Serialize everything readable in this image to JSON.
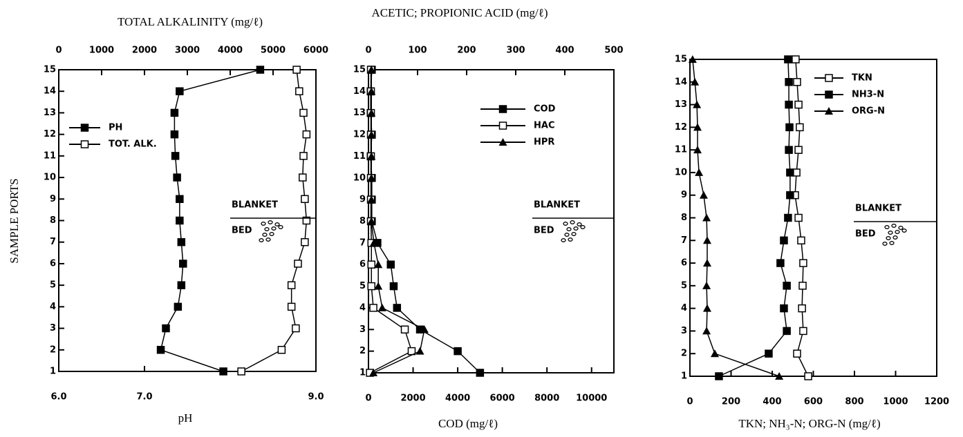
{
  "chart_data": [
    {
      "type": "line",
      "x2label": "TOTAL ALKALINITY (mg/ℓ)",
      "xlabel": "pH",
      "ylabel": "SAMPLE PORTS",
      "y": [
        15,
        14,
        13,
        12,
        11,
        10,
        9,
        8,
        7,
        6,
        5,
        4,
        3,
        2,
        1
      ],
      "series": [
        {
          "name": "PH",
          "color": "#000000",
          "marker": "square-filled",
          "values": [
            8.35,
            7.41,
            7.35,
            7.35,
            7.36,
            7.38,
            7.41,
            7.41,
            7.43,
            7.45,
            7.43,
            7.39,
            7.25,
            7.19,
            7.92
          ]
        },
        {
          "name": "TOT. ALK.",
          "color": "#000000",
          "marker": "square-open",
          "axis": "x2",
          "values": [
            5550,
            5610,
            5710,
            5780,
            5710,
            5690,
            5740,
            5780,
            5740,
            5580,
            5430,
            5430,
            5530,
            5200,
            4260
          ]
        }
      ],
      "xlim": [
        6,
        9
      ],
      "xticks": [
        {
          "value": 6,
          "label": "6.0"
        },
        {
          "value": 7,
          "label": "7.0"
        },
        {
          "value": 9,
          "label": "9.0"
        }
      ],
      "x2lim": [
        0,
        6000
      ],
      "x2ticks": [
        0,
        1000,
        2000,
        3000,
        4000,
        5000,
        6000
      ],
      "ylim": [
        1,
        15
      ],
      "yticks": [
        1,
        2,
        3,
        4,
        5,
        6,
        7,
        8,
        9,
        10,
        11,
        12,
        13,
        14,
        15
      ],
      "annotations": [
        "BLANKET",
        "BED"
      ]
    },
    {
      "type": "line",
      "x2label": "ACETIC; PROPIONIC ACID (mg/ℓ)",
      "xlabel": "COD (mg/ℓ)",
      "y": [
        15,
        14,
        13,
        12,
        11,
        10,
        9,
        8,
        7,
        6,
        5,
        4,
        3,
        2,
        1
      ],
      "series": [
        {
          "name": "COD",
          "color": "#000000",
          "marker": "square-filled",
          "values": [
            150,
            100,
            100,
            150,
            100,
            150,
            150,
            150,
            400,
            1000,
            1130,
            1280,
            2310,
            4000,
            5000
          ]
        },
        {
          "name": "HAC",
          "color": "#000000",
          "marker": "square-open",
          "axis": "x2",
          "values": [
            5,
            5,
            5,
            5,
            5,
            5,
            5,
            5,
            6,
            6,
            6,
            10,
            74,
            88,
            3
          ]
        },
        {
          "name": "HPR",
          "color": "#000000",
          "marker": "triangle",
          "axis": "x2",
          "values": [
            6,
            6,
            6,
            6,
            6,
            6,
            6,
            6,
            11,
            20,
            20,
            28,
            114,
            105,
            10
          ]
        }
      ],
      "xlim": [
        0,
        11000
      ],
      "xticks": [
        0,
        2000,
        4000,
        6000,
        8000,
        10000
      ],
      "x2lim": [
        0,
        500
      ],
      "x2ticks": [
        0,
        100,
        200,
        300,
        400,
        500
      ],
      "ylim": [
        1,
        15
      ],
      "yticks": [
        1,
        2,
        3,
        4,
        5,
        6,
        7,
        8,
        9,
        10,
        11,
        12,
        13,
        14,
        15
      ],
      "annotations": [
        "BLANKET",
        "BED"
      ]
    },
    {
      "type": "line",
      "xlabel": "TKN; NH₃-N; ORG-N (mg/ℓ)",
      "y": [
        15,
        14,
        13,
        12,
        11,
        10,
        9,
        8,
        7,
        6,
        5,
        4,
        3,
        2,
        1
      ],
      "series": [
        {
          "name": "TKN",
          "color": "#000000",
          "marker": "square-open",
          "values": [
            514,
            521,
            528,
            534,
            528,
            518,
            511,
            528,
            541,
            551,
            548,
            545,
            551,
            521,
            575
          ]
        },
        {
          "name": "NH3-N",
          "color": "#000000",
          "marker": "square-filled",
          "values": [
            477,
            481,
            481,
            484,
            481,
            487,
            487,
            477,
            457,
            440,
            471,
            457,
            471,
            383,
            141
          ]
        },
        {
          "name": "ORG-N",
          "color": "#000000",
          "marker": "triangle",
          "values": [
            13,
            24,
            34,
            37,
            37,
            44,
            67,
            81,
            84,
            84,
            81,
            84,
            81,
            121,
            434
          ]
        }
      ],
      "xlim": [
        0,
        1200
      ],
      "xticks": [
        0,
        200,
        400,
        600,
        800,
        1000,
        1200
      ],
      "ylim": [
        1,
        15
      ],
      "yticks": [
        1,
        2,
        3,
        4,
        5,
        6,
        7,
        8,
        9,
        10,
        11,
        12,
        13,
        14,
        15
      ],
      "annotations": [
        "BLANKET",
        "BED"
      ]
    }
  ]
}
